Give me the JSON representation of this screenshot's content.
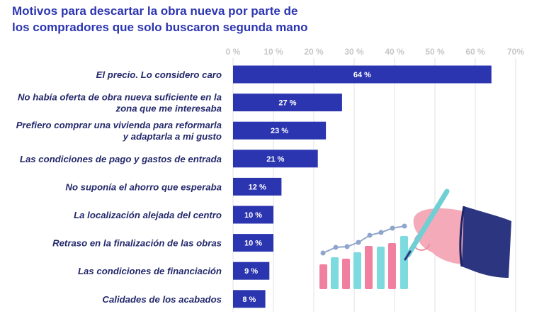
{
  "chart_data": {
    "type": "bar",
    "orientation": "horizontal",
    "title_lines": [
      "Motivos para descartar la obra nueva por parte de",
      "los compradores que solo buscaron segunda mano"
    ],
    "xlim": [
      0,
      70
    ],
    "ticks": [
      0,
      10,
      20,
      30,
      40,
      50,
      60,
      70
    ],
    "tick_labels": [
      "0 %",
      "10 %",
      "20 %",
      "30 %",
      "40 %",
      "50 %",
      "60 %",
      "70%"
    ],
    "categories": [
      [
        "El precio. Lo considero caro"
      ],
      [
        "No había oferta de obra nueva suficiente en la",
        "zona que me interesaba"
      ],
      [
        "Prefiero comprar una vivienda para reformarla",
        "y adaptarla a mi gusto"
      ],
      [
        "Las condiciones de pago y gastos de entrada"
      ],
      [
        "No suponía el ahorro que esperaba"
      ],
      [
        "La localización alejada del centro"
      ],
      [
        "Retraso en la finalización de las obras"
      ],
      [
        "Las condiciones de financiación"
      ],
      [
        "Calidades de los acabados"
      ]
    ],
    "values": [
      64,
      27,
      23,
      21,
      12,
      10,
      10,
      9,
      8
    ],
    "value_labels": [
      "64 %",
      "27 %",
      "23 %",
      "21 %",
      "12 %",
      "10 %",
      "10 %",
      "9 %",
      "8 %"
    ],
    "grid": true,
    "colors": {
      "bar": "#2c35b0",
      "title": "#2c35b0",
      "category_text": "#23286b",
      "tick_text": "#c7c7c7",
      "value_text": "#ffffff"
    }
  },
  "illustration": {
    "name": "hand drawing growing bar chart",
    "colors": {
      "pink": "#f07fa0",
      "cyan": "#7ddbe0",
      "navy": "#2c3580",
      "skin": "#f4aab8",
      "line": "#8fa6cc",
      "pen": "#6ecfd4"
    }
  }
}
